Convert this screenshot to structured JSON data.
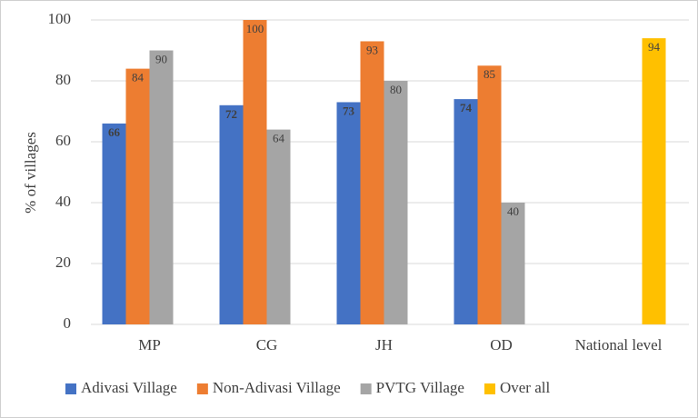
{
  "chart_data": {
    "type": "bar",
    "y_label": "% of villages",
    "categories": [
      "MP",
      "CG",
      "JH",
      "OD",
      "National level"
    ],
    "series": [
      {
        "name": "Adivasi Village",
        "color": "#4472c4",
        "values": [
          66,
          72,
          73,
          74,
          null
        ]
      },
      {
        "name": "Non-Adivasi Village",
        "color": "#ed7d31",
        "values": [
          84,
          100,
          93,
          85,
          null
        ]
      },
      {
        "name": "PVTG Village",
        "color": "#a5a5a5",
        "values": [
          90,
          64,
          80,
          40,
          null
        ]
      },
      {
        "name": "Over all",
        "color": "#ffc000",
        "values": [
          null,
          null,
          null,
          null,
          94
        ]
      }
    ],
    "ylim": [
      0,
      100
    ],
    "yticks": [
      0,
      20,
      40,
      60,
      80,
      100
    ],
    "grid": true,
    "legend": "bottom"
  }
}
